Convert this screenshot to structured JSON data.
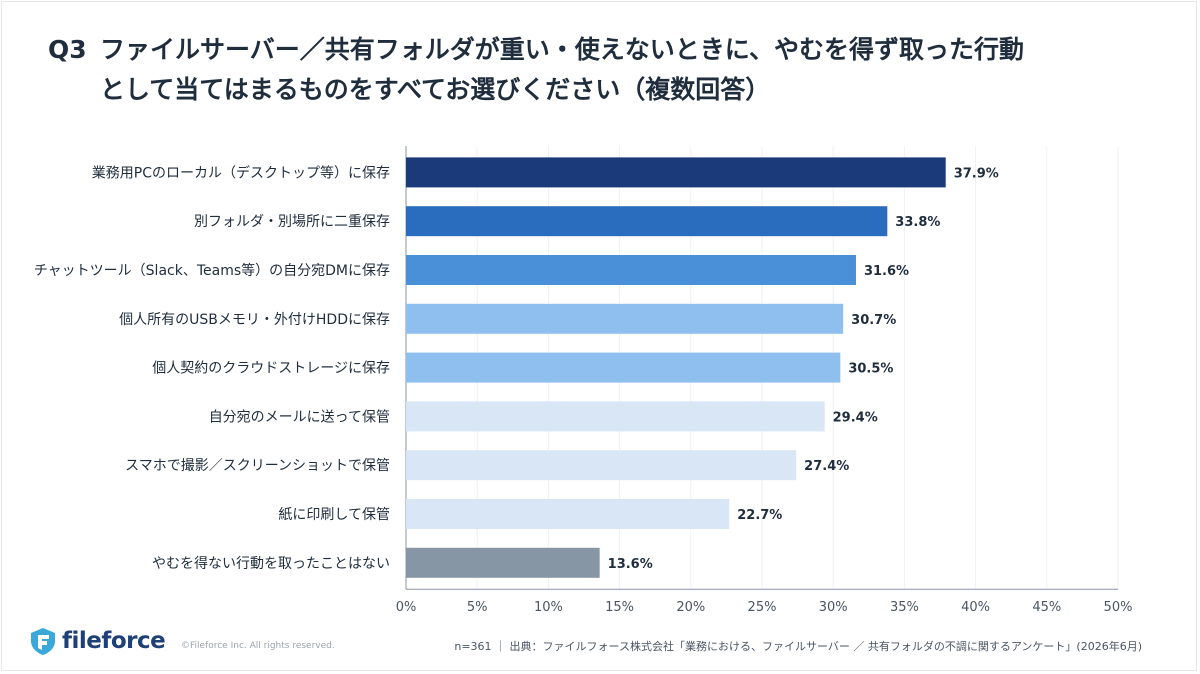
{
  "header": {
    "question_no": "Q3",
    "title_line1": "ファイルサーバー／共有フォルダが重い・使えないときに、やむを得ず取った行動",
    "title_line2": "として当てはまるものをすべてお選びください（複数回答）"
  },
  "chart_data": {
    "type": "bar",
    "orientation": "horizontal",
    "categories": [
      "業務用PCのローカル（デスクトップ等）に保存",
      "別フォルダ・別場所に二重保存",
      "チャットツール（Slack、Teams等）の自分宛DMに保存",
      "個人所有のUSBメモリ・外付けHDDに保存",
      "個人契約のクラウドストレージに保存",
      "自分宛のメールに送って保管",
      "スマホで撮影／スクリーンショットで保管",
      "紙に印刷して保管",
      "やむを得ない行動を取ったことはない"
    ],
    "values": [
      37.9,
      33.8,
      31.6,
      30.7,
      30.5,
      29.4,
      27.4,
      22.7,
      13.6
    ],
    "value_labels": [
      "37.9%",
      "33.8%",
      "31.6%",
      "30.7%",
      "30.5%",
      "29.4%",
      "27.4%",
      "22.7%",
      "13.6%"
    ],
    "bar_colors": [
      "#1a3a7a",
      "#2a6dbf",
      "#4a90d9",
      "#8fbfee",
      "#8fbfee",
      "#d9e6f5",
      "#d9e6f5",
      "#d9e6f5",
      "#8796a5"
    ],
    "xlim": [
      0,
      50
    ],
    "xticks": [
      0,
      5,
      10,
      15,
      20,
      25,
      30,
      35,
      40,
      45,
      50
    ],
    "xtick_labels": [
      "0%",
      "5%",
      "10%",
      "15%",
      "20%",
      "25%",
      "30%",
      "35%",
      "40%",
      "45%",
      "50%"
    ],
    "grid": true
  },
  "footer": {
    "logo_text": "fileforce",
    "copyright": "©Fileforce Inc. All rights reserved.",
    "source": "n=361 ｜ 出典：ファイルフォース株式会社「業務における、ファイルサーバー ／ 共有フォルダの不調に関するアンケート」(2026年6月)"
  },
  "colors": {
    "title": "#1f2d3d",
    "logo": "#1f3f77",
    "axis": "#8a96a3"
  }
}
